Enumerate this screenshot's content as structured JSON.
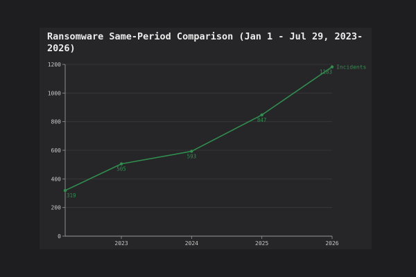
{
  "chart_data": {
    "type": "line",
    "title": "Ransomware Same-Period Comparison (Jan 1 - Jul 29, 2023-2026)",
    "xlabel": "",
    "ylabel": "",
    "x": [
      2022.2,
      2023,
      2024,
      2025,
      2026
    ],
    "xlim": [
      2022.2,
      2026
    ],
    "x_ticks": [
      2023,
      2024,
      2025,
      2026
    ],
    "x_tick_labels": [
      "2023",
      "2024",
      "2025",
      "2026"
    ],
    "ylim": [
      0,
      1200
    ],
    "y_ticks": [
      0,
      200,
      400,
      600,
      800,
      1000,
      1200
    ],
    "y_tick_labels": [
      "0",
      "200",
      "400",
      "600",
      "800",
      "1000",
      "1200"
    ],
    "grid": true,
    "series": [
      {
        "name": "Incidents",
        "values": [
          319,
          505,
          593,
          847,
          1183
        ],
        "labels": [
          "319",
          "505",
          "593",
          "847",
          "1183"
        ],
        "color": "#2f8f4e"
      }
    ]
  }
}
